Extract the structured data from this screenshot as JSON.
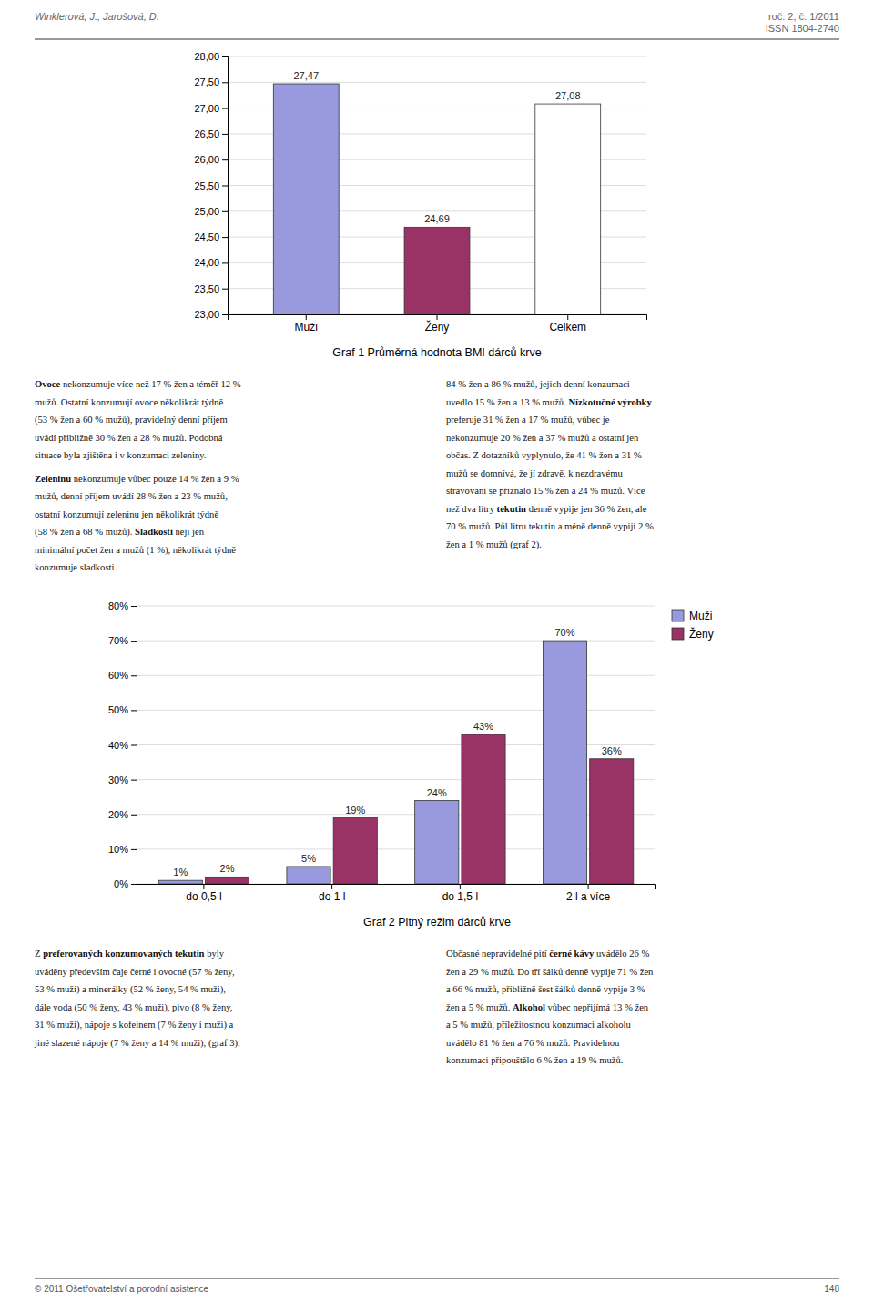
{
  "page_header_left": "Winklerová, J., Jarošová, D.",
  "page_header_right": [
    "roč. 2, č. 1/2011",
    "ISSN 1804-2740"
  ],
  "page_footer": "© 2011 Ošetřovatelství a porodní asistence",
  "page_number": "148",
  "chart_data": [
    {
      "type": "bar",
      "title": "Graf 1 Průměrná hodnota BMI dárců krve",
      "categories": [
        "Muži",
        "Ženy",
        "Celkem"
      ],
      "values": [
        27.47,
        24.69,
        27.08
      ],
      "value_labels": [
        "27,47",
        "24,69",
        "27,08"
      ],
      "colors": [
        "#9999dd",
        "#993366",
        "#ffffff"
      ],
      "ylim": [
        23.0,
        28.0
      ],
      "yticks": [
        {
          "value": 23.0,
          "label": "23,00"
        },
        {
          "value": 23.5,
          "label": "23,50"
        },
        {
          "value": 24.0,
          "label": "24,00"
        },
        {
          "value": 24.5,
          "label": "24,50"
        },
        {
          "value": 25.0,
          "label": "25,00"
        },
        {
          "value": 25.5,
          "label": "25,50"
        },
        {
          "value": 26.0,
          "label": "26,00"
        },
        {
          "value": 26.5,
          "label": "26,50"
        },
        {
          "value": 27.0,
          "label": "27,00"
        },
        {
          "value": 27.5,
          "label": "27,50"
        },
        {
          "value": 28.0,
          "label": "28,00"
        }
      ],
      "grid": true,
      "data_labels": true
    },
    {
      "type": "bar",
      "title": "Graf 2 Pitný režim dárců krve",
      "categories": [
        "do 0,5 l",
        "do 1 l",
        "do 1,5 l",
        "2 l a více"
      ],
      "series": [
        {
          "name": "Muži",
          "color": "#9999dd",
          "values": [
            1,
            5,
            24,
            70
          ],
          "value_labels": [
            "1%",
            "5%",
            "24%",
            "70%"
          ]
        },
        {
          "name": "Ženy",
          "color": "#993366",
          "values": [
            2,
            19,
            43,
            36
          ],
          "value_labels": [
            "2%",
            "19%",
            "43%",
            "36%"
          ]
        }
      ],
      "ylim": [
        0,
        80
      ],
      "yticks": [
        {
          "value": 0,
          "label": "0%"
        },
        {
          "value": 10,
          "label": "10%"
        },
        {
          "value": 20,
          "label": "20%"
        },
        {
          "value": 30,
          "label": "30%"
        },
        {
          "value": 40,
          "label": "40%"
        },
        {
          "value": 50,
          "label": "50%"
        },
        {
          "value": 60,
          "label": "60%"
        },
        {
          "value": 70,
          "label": "70%"
        },
        {
          "value": 80,
          "label": "80%"
        }
      ],
      "grid": true,
      "legend": "upper right",
      "data_labels": true
    }
  ],
  "text_blocks": [
    {
      "left": [
        [
          [
            {
              "text": "Ovoce",
              "bold": true
            },
            {
              "text": " nekonzumuje více než 17 % žen a téměř 12 %"
            }
          ],
          [
            {
              "text": "mužů. Ostatní konzumují ovoce několikrát týdně"
            }
          ],
          [
            {
              "text": "(53 % žen a 60 % mužů), pravidelný denní příjem"
            }
          ],
          [
            {
              "text": "uvádí přibližně 30 % žen a 28 % mužů. Podobná"
            }
          ],
          [
            {
              "text": "situace byla zjištěna i v konzumaci zeleniny."
            }
          ]
        ],
        [
          [
            {
              "text": "Zeleninu",
              "bold": true
            },
            {
              "text": " nekonzumuje vůbec pouze 14 % žen a 9 %"
            }
          ],
          [
            {
              "text": "mužů, denní příjem uvádí 28 % žen a 23 % mužů,"
            }
          ],
          [
            {
              "text": "ostatní konzumují zeleninu jen několikrát týdně"
            }
          ],
          [
            {
              "text": "(58 % žen a 68 % mužů). "
            },
            {
              "text": "Sladkosti",
              "bold": true
            },
            {
              "text": " nejí jen"
            }
          ],
          [
            {
              "text": "minimální počet žen a mužů (1 %), několikrát týdně"
            }
          ],
          [
            {
              "text": "konzumuje sladkosti"
            }
          ]
        ]
      ],
      "right": [
        [
          [
            {
              "text": "84 % žen a 86 % mužů, jejich denní konzumaci"
            }
          ],
          [
            {
              "text": "uvedlo 15 % žen a 13 % mužů. "
            },
            {
              "text": "Nízkotučné výrobky",
              "bold": true
            }
          ],
          [
            {
              "text": "preferuje 31 % žen a 17 % mužů, vůbec je"
            }
          ],
          [
            {
              "text": "nekonzumuje 20 % žen a 37 % mužů a ostatní jen"
            }
          ],
          [
            {
              "text": "občas. Z dotazníků vyplynulo, že 41 % žen a 31 %"
            }
          ],
          [
            {
              "text": "mužů se domnívá, že jí zdravě, k nezdravému"
            }
          ],
          [
            {
              "text": "stravování se přiznalo 15 % žen a 24 % mužů. Více"
            }
          ],
          [
            {
              "text": "než dva litry "
            },
            {
              "text": "tekutin",
              "bold": true
            },
            {
              "text": " denně vypije jen 36 % žen, ale"
            }
          ],
          [
            {
              "text": "70 % mužů. Půl litru tekutin a méně denně vypijí 2 %"
            }
          ],
          [
            {
              "text": "žen a 1 % mužů (graf 2)."
            }
          ]
        ]
      ]
    },
    {
      "left": [
        [
          [
            {
              "text": "Z "
            },
            {
              "text": "preferovaných konzumovaných tekutin",
              "bold": true
            },
            {
              "text": " byly"
            }
          ],
          [
            {
              "text": "uváděny především čaje černé i ovocné (57 % ženy,"
            }
          ],
          [
            {
              "text": "53 % muži) a minerálky (52 % ženy, 54 % muži),"
            }
          ],
          [
            {
              "text": "dále voda (50 % ženy, 43 % muži), pivo (8 % ženy,"
            }
          ],
          [
            {
              "text": "31 % muži), nápoje s kofeinem (7 % ženy i muži) a"
            }
          ],
          [
            {
              "text": "jiné slazené nápoje (7 % ženy a 14 % muži), (graf 3)."
            }
          ]
        ]
      ],
      "right": [
        [
          [
            {
              "text": "Občasné nepravidelné pití "
            },
            {
              "text": "černé kávy",
              "bold": true
            },
            {
              "text": " uvádělo 26 %"
            }
          ],
          [
            {
              "text": "žen a 29 % mužů. Do tří šálků denně vypije 71 % žen"
            }
          ],
          [
            {
              "text": "a 66 % mužů, přibližně šest šálků denně vypije 3 %"
            }
          ],
          [
            {
              "text": "žen a 5 % mužů. "
            },
            {
              "text": "Alkohol",
              "bold": true
            },
            {
              "text": " vůbec nepřijímá 13 % žen"
            }
          ],
          [
            {
              "text": "a 5 % mužů, příležitostnou konzumaci alkoholu"
            }
          ],
          [
            {
              "text": "uvádělo 81 % žen a 76 % mužů. Pravidelnou"
            }
          ],
          [
            {
              "text": "konzumaci připouštělo 6 % žen a 19 % mužů."
            }
          ]
        ]
      ]
    }
  ]
}
